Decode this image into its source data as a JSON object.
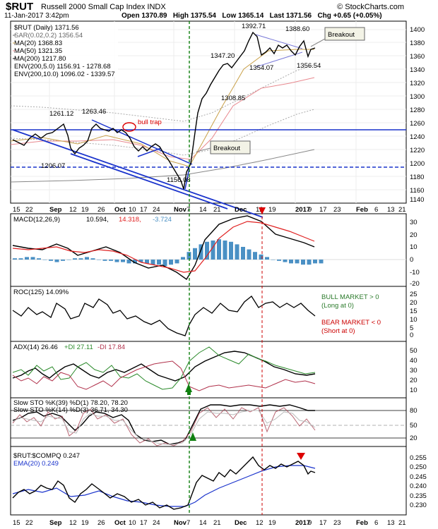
{
  "header": {
    "symbol": "$RUT",
    "name": "Russell 2000 Small Cap Index",
    "exchange": "INDX",
    "brand": "© StockCharts.com",
    "date": "11-Jan-2017 3:42pm",
    "open": "Open 1370.89",
    "high": "High 1375.54",
    "low": "Low 1365.14",
    "last": "Last 1371.56",
    "chg": "Chg +0.65 (+0.05%)"
  },
  "legend": {
    "price": "$RUT (Daily) 1371.56",
    "sar": "SAR(0.02,0.2) 1356.54",
    "ma20": "MA(20) 1368.83",
    "ma50": "MA(50) 1321.35",
    "ma200": "MA(200) 1217.80",
    "env5": "ENV(200,5.0) 1156.91 - 1278.68",
    "env10": "ENV(200,10.0) 1096.02 - 1339.57"
  },
  "panels": {
    "macd": {
      "label": "MACD(12,26,9)",
      "v1": "10.594,",
      "v2": "14.318,",
      "v3": "-3.724"
    },
    "roc": {
      "label": "ROC(125) 14.09%",
      "bull": "BULL MARKET > 0",
      "bull2": "(Long at 0)",
      "bear": "BEAR MARKET < 0",
      "bear2": "(Short at 0)"
    },
    "adx": {
      "label": "ADX(14) 26.46",
      "pdi": "+DI 27.11",
      "mdi": "-DI 17.84"
    },
    "sto": {
      "label1": "Slow STO %K(39) %D(1) 78.20, 78.20",
      "label2": "Slow STO %K(14) %D(3) 36.71, 34.30"
    },
    "ratio": {
      "label": "$RUT:$COMPQ 0.247",
      "ema": "EMA(20) 0.249"
    }
  },
  "annotations": {
    "bull_trap": "bull trap",
    "breakout_top": "Breakout",
    "breakout_mid": "Breakout",
    "labels": [
      "1261.12",
      "1263.46",
      "1206.07",
      "1156.08",
      "1347.20",
      "1308.85",
      "1392.71",
      "1388.60",
      "1354.07",
      "1356.54"
    ]
  },
  "x_axis": {
    "ticks": [
      "15",
      "22",
      "Sep",
      "12",
      "19",
      "26",
      "Oct",
      "10",
      "17",
      "24",
      "Nov",
      "7",
      "14",
      "21",
      "Dec",
      "12",
      "19",
      "2017",
      "9",
      "17",
      "23",
      "Feb",
      "6",
      "13",
      "21"
    ]
  },
  "y_axes": {
    "price": [
      "1400",
      "1380",
      "1360",
      "1340",
      "1320",
      "1300",
      "1280",
      "1260",
      "1240",
      "1220",
      "1200",
      "1180",
      "1160",
      "1140"
    ],
    "macd": [
      "30",
      "20",
      "10",
      "0",
      "-10",
      "-20"
    ],
    "roc": [
      "25",
      "20",
      "15",
      "10",
      "5",
      "0",
      "-5"
    ],
    "adx": [
      "50",
      "40",
      "30",
      "20",
      "10"
    ],
    "sto": [
      "80",
      "50",
      "20"
    ],
    "ratio": [
      "0.255",
      "0.250",
      "0.245",
      "0.240",
      "0.235",
      "0.230"
    ]
  },
  "colors": {
    "price": "#000000",
    "ma20": "#c9a14a",
    "ma50": "#e8888e",
    "ma200": "#888888",
    "trend": "#1a33cc",
    "macd_signal": "#e02020",
    "hist": "#4a90c4",
    "pdi": "#2a8a2a",
    "mdi": "#b0304a",
    "ema": "#1a33cc",
    "vline_green": "#108010",
    "vline_red": "#cc0000"
  },
  "chart_data": {
    "type": "line",
    "title": "$RUT Russell 2000 Small Cap Index INDX",
    "x": [
      "Aug 15",
      "Aug 22",
      "Aug 29",
      "Sep 6",
      "Sep 12",
      "Sep 19",
      "Sep 26",
      "Oct 3",
      "Oct 10",
      "Oct 17",
      "Oct 24",
      "Oct 31",
      "Nov 7",
      "Nov 14",
      "Nov 21",
      "Nov 28",
      "Dec 5",
      "Dec 12",
      "Dec 19",
      "Dec 27",
      "Jan 3",
      "Jan 9",
      "Jan 11"
    ],
    "series": [
      {
        "name": "$RUT (Daily)",
        "values": [
          1230,
          1238,
          1248,
          1258,
          1225,
          1235,
          1255,
          1245,
          1222,
          1215,
          1218,
          1190,
          1165,
          1275,
          1310,
          1330,
          1345,
          1385,
          1378,
          1370,
          1375,
          1366,
          1371.56
        ]
      },
      {
        "name": "MACD(12,26,9)",
        "values": [
          3,
          2,
          4,
          5,
          1,
          0,
          2,
          1,
          -3,
          -7,
          -6,
          -9,
          -12,
          5,
          20,
          27,
          30,
          32,
          30,
          24,
          17,
          13,
          10.594
        ]
      },
      {
        "name": "ROC(125)",
        "values": [
          12,
          9,
          6,
          10,
          5,
          8,
          12,
          11,
          6,
          4,
          3,
          2,
          5,
          10,
          18,
          19,
          21,
          23,
          20,
          19,
          18,
          15,
          14.09
        ]
      },
      {
        "name": "ADX(14)",
        "values": [
          22,
          20,
          18,
          22,
          25,
          20,
          18,
          22,
          20,
          22,
          26,
          30,
          38,
          30,
          35,
          40,
          44,
          46,
          40,
          35,
          31,
          28,
          26.46
        ]
      },
      {
        "name": "Slow STO %K(39)",
        "values": [
          60,
          55,
          70,
          80,
          40,
          55,
          65,
          55,
          25,
          20,
          25,
          15,
          20,
          60,
          88,
          90,
          88,
          90,
          88,
          85,
          82,
          80,
          78.2
        ]
      },
      {
        "name": "$RUT:$COMPQ",
        "values": [
          0.236,
          0.237,
          0.239,
          0.238,
          0.235,
          0.236,
          0.239,
          0.236,
          0.234,
          0.233,
          0.232,
          0.231,
          0.232,
          0.244,
          0.247,
          0.249,
          0.25,
          0.252,
          0.25,
          0.251,
          0.252,
          0.246,
          0.247
        ]
      }
    ],
    "ylim_price": [
      1140,
      1410
    ]
  }
}
